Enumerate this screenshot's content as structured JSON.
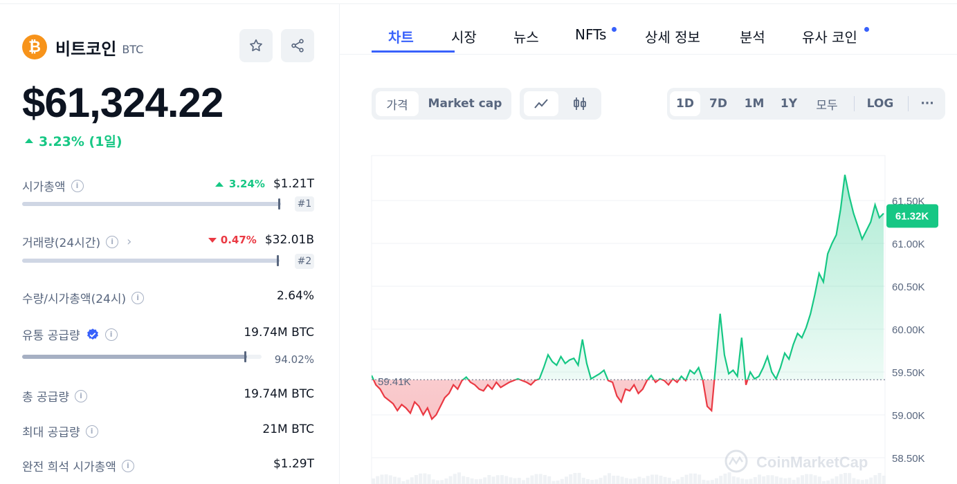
{
  "coin": {
    "name": "비트코인",
    "symbol": "BTC",
    "logo_glyph": "₿",
    "price": "$61,324.22",
    "change_1d": "3.23% (1일)",
    "change_dir": "up"
  },
  "actions": {
    "star_icon": "star-icon",
    "share_icon": "share-icon"
  },
  "stats": {
    "market_cap": {
      "label": "시가총액",
      "change": "3.24%",
      "value": "$1.21T",
      "rank": "#1"
    },
    "volume": {
      "label": "거래량(24시간)",
      "change": "0.47%",
      "value": "$32.01B",
      "rank": "#2"
    },
    "vol_mcap": {
      "label": "수량/시가총액(24시)",
      "value": "2.64%"
    },
    "circulating": {
      "label": "유통 공급량",
      "value": "19.74M BTC",
      "percent": "94.02%",
      "fill_fraction": 0.9402
    },
    "total_supply": {
      "label": "총 공급량",
      "value": "19.74M BTC"
    },
    "max_supply": {
      "label": "최대 공급량",
      "value": "21M BTC"
    },
    "fdv": {
      "label": "완전 희석 시가총액",
      "value": "$1.29T"
    }
  },
  "tabs": [
    {
      "label": "차트",
      "active": true
    },
    {
      "label": "시장"
    },
    {
      "label": "뉴스"
    },
    {
      "label": "NFTs",
      "dot": true
    },
    {
      "label": "상세 정보"
    },
    {
      "label": "분석"
    },
    {
      "label": "유사 코인",
      "dot": true
    }
  ],
  "controls": {
    "type_toggle": [
      "가격",
      "Market cap"
    ],
    "type_selected": "가격",
    "ranges": [
      "1D",
      "7D",
      "1M",
      "1Y",
      "모두"
    ],
    "range_selected": "1D",
    "log_label": "LOG",
    "more_label": "···"
  },
  "colors": {
    "up": "#16c784",
    "down": "#ea3943",
    "accent": "#3861fb"
  },
  "chart_data": {
    "type": "line",
    "y_ticks": [
      "61.50K",
      "61.00K",
      "60.50K",
      "60.00K",
      "59.50K",
      "59.00K",
      "58.50K"
    ],
    "ylim": [
      58.5,
      61.9
    ],
    "baseline_label": "59.41K",
    "baseline": 59.41,
    "current_label": "61.32K",
    "current": 61.32,
    "watermark": "CoinMarketCap",
    "series": [
      {
        "values": [
          59.46,
          59.35,
          59.3,
          59.21,
          59.17,
          59.13,
          59.05,
          59.12,
          59.08,
          59.02,
          59.15,
          59.1,
          59.0,
          59.08,
          58.95,
          59.0,
          59.1,
          59.2,
          59.25,
          59.35,
          59.3,
          59.4,
          59.44,
          59.38,
          59.35,
          59.3,
          59.28,
          59.35,
          59.3,
          59.38,
          59.32,
          59.35,
          59.38,
          59.4,
          59.42,
          59.4,
          59.38,
          59.35,
          59.4,
          59.42,
          59.55,
          59.7,
          59.62,
          59.58,
          59.68,
          59.6,
          59.64,
          59.66,
          59.58,
          59.88,
          59.6,
          59.42,
          59.45,
          59.48,
          59.52,
          59.4,
          59.38,
          59.22,
          59.15,
          59.3,
          59.28,
          59.35,
          59.25,
          59.3,
          59.4,
          59.46,
          59.38,
          59.42,
          59.4,
          59.35,
          59.42,
          59.38,
          59.45,
          59.4,
          59.52,
          59.48,
          59.55,
          59.4,
          59.1,
          59.05,
          59.6,
          60.18,
          59.7,
          59.48,
          59.52,
          59.45,
          59.9,
          59.35,
          59.5,
          59.42,
          59.45,
          59.55,
          59.68,
          59.5,
          59.42,
          59.55,
          59.72,
          59.65,
          59.82,
          59.95,
          59.9,
          60.02,
          60.18,
          60.4,
          60.65,
          60.55,
          60.88,
          61.0,
          61.1,
          61.4,
          61.8,
          61.55,
          61.35,
          61.2,
          61.05,
          61.15,
          61.25,
          61.45,
          61.3,
          61.35
        ]
      }
    ]
  }
}
